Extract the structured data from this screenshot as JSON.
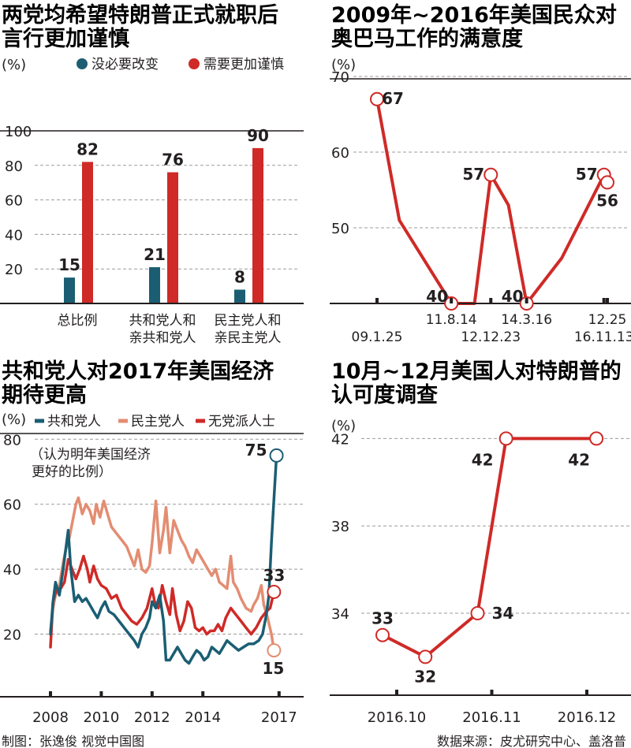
{
  "colors": {
    "teal": "#1b5e73",
    "red": "#cf2a27",
    "salmon": "#e38d72",
    "grid": "#9b9b9b",
    "text": "#231f20"
  },
  "chart_data": [
    {
      "id": "c1",
      "type": "bar",
      "title": [
        "两党均希望特朗普正式就职后",
        "言行更加谨慎"
      ],
      "unit": "(%)",
      "legend": "top",
      "ylim": [
        0,
        100
      ],
      "yticks": [
        20,
        40,
        60,
        80,
        100
      ],
      "grid": true,
      "categories": [
        [
          "总比例"
        ],
        [
          "共和党人和",
          "亲共和党人"
        ],
        [
          "民主党人和",
          "亲民主党人"
        ]
      ],
      "series": [
        {
          "name": "没必要改变",
          "color": "#1b5e73",
          "values": [
            15,
            21,
            8
          ]
        },
        {
          "name": "需要更加谨慎",
          "color": "#cf2a27",
          "values": [
            82,
            76,
            90
          ]
        }
      ]
    },
    {
      "id": "c2",
      "type": "line",
      "title": [
        "2009年~2016年美国民众对",
        "奥巴马工作的满意度"
      ],
      "unit": "(%)",
      "ylim": [
        40,
        70
      ],
      "yticks": [
        50,
        60,
        70
      ],
      "grid": true,
      "x_date_labels": [
        {
          "text": "09.1.25",
          "date": "2009-01-25",
          "row": 2
        },
        {
          "text": "11.8.14",
          "date": "2011-08-14",
          "row": 1
        },
        {
          "text": "12.12.23",
          "date": "2012-12-23",
          "row": 2
        },
        {
          "text": "14.3.16",
          "date": "2014-03-16",
          "row": 1
        },
        {
          "text": "16.11.13",
          "date": "2016-11-13",
          "row": 2
        },
        {
          "text": "12.25",
          "date": "2016-12-25",
          "row": 1
        }
      ],
      "series": [
        {
          "color": "#cf2a27",
          "points": [
            [
              "2009-01-25",
              67
            ],
            [
              "2009-11-01",
              51
            ],
            [
              "2011-08-14",
              40
            ],
            [
              "2012-06-01",
              40
            ],
            [
              "2012-12-23",
              57
            ],
            [
              "2013-08-01",
              53
            ],
            [
              "2014-03-16",
              40
            ],
            [
              "2015-06-01",
              46
            ],
            [
              "2016-11-13",
              57
            ],
            [
              "2016-12-25",
              56
            ]
          ],
          "labeled": [
            {
              "date": "2009-01-25",
              "value": 67,
              "label": "67"
            },
            {
              "date": "2011-08-14",
              "value": 40,
              "label": "40"
            },
            {
              "date": "2012-12-23",
              "value": 57,
              "label": "57"
            },
            {
              "date": "2014-03-16",
              "value": 40,
              "label": "40"
            },
            {
              "date": "2016-11-13",
              "value": 57,
              "label": "57"
            },
            {
              "date": "2016-12-25",
              "value": 56,
              "label": "56"
            }
          ]
        }
      ]
    },
    {
      "id": "c3",
      "type": "line",
      "title": [
        "共和党人对2017年美国经济",
        "期待更高"
      ],
      "unit": "(%)",
      "legend": "top",
      "annotation": [
        "（认为明年美国经济",
        "更好的比例）"
      ],
      "ylim": [
        10,
        80
      ],
      "yticks": [
        20,
        40,
        60,
        80
      ],
      "xticks": [
        2008,
        2010,
        2012,
        2014,
        2017
      ],
      "grid": true,
      "series": [
        {
          "name": "共和党人",
          "color": "#1b5e73",
          "end_label": "75",
          "points": [
            [
              2008.0,
              20
            ],
            [
              2008.1,
              30
            ],
            [
              2008.2,
              36
            ],
            [
              2008.35,
              32
            ],
            [
              2008.5,
              40
            ],
            [
              2008.6,
              46
            ],
            [
              2008.7,
              52
            ],
            [
              2008.8,
              40
            ],
            [
              2008.95,
              30
            ],
            [
              2009.1,
              32
            ],
            [
              2009.25,
              30
            ],
            [
              2009.4,
              31
            ],
            [
              2009.55,
              29
            ],
            [
              2009.7,
              27
            ],
            [
              2009.85,
              25
            ],
            [
              2010.0,
              28
            ],
            [
              2010.15,
              30
            ],
            [
              2010.3,
              27
            ],
            [
              2010.5,
              26
            ],
            [
              2010.7,
              24
            ],
            [
              2010.9,
              22
            ],
            [
              2011.1,
              20
            ],
            [
              2011.3,
              18
            ],
            [
              2011.45,
              16
            ],
            [
              2011.6,
              20
            ],
            [
              2011.75,
              22
            ],
            [
              2011.9,
              25
            ],
            [
              2012.0,
              30
            ],
            [
              2012.15,
              28
            ],
            [
              2012.3,
              32
            ],
            [
              2012.45,
              24
            ],
            [
              2012.55,
              12
            ],
            [
              2012.7,
              12
            ],
            [
              2012.85,
              14
            ],
            [
              2013.0,
              16
            ],
            [
              2013.15,
              14
            ],
            [
              2013.3,
              12
            ],
            [
              2013.45,
              11
            ],
            [
              2013.6,
              13
            ],
            [
              2013.75,
              15
            ],
            [
              2013.9,
              14
            ],
            [
              2014.05,
              12
            ],
            [
              2014.2,
              13
            ],
            [
              2014.35,
              16
            ],
            [
              2014.5,
              15
            ],
            [
              2014.65,
              14
            ],
            [
              2014.8,
              16
            ],
            [
              2014.95,
              18
            ],
            [
              2015.1,
              17
            ],
            [
              2015.25,
              16
            ],
            [
              2015.4,
              15
            ],
            [
              2015.6,
              16
            ],
            [
              2015.8,
              17
            ],
            [
              2016.0,
              17
            ],
            [
              2016.2,
              18
            ],
            [
              2016.35,
              20
            ],
            [
              2016.5,
              26
            ],
            [
              2016.6,
              32
            ],
            [
              2016.7,
              48
            ],
            [
              2016.8,
              62
            ],
            [
              2016.9,
              75
            ]
          ]
        },
        {
          "name": "民主党人",
          "color": "#e38d72",
          "end_label": "15",
          "points": [
            [
              2008.0,
              21
            ],
            [
              2008.1,
              28
            ],
            [
              2008.2,
              32
            ],
            [
              2008.35,
              35
            ],
            [
              2008.5,
              42
            ],
            [
              2008.6,
              46
            ],
            [
              2008.75,
              50
            ],
            [
              2008.9,
              56
            ],
            [
              2009.0,
              60
            ],
            [
              2009.1,
              62
            ],
            [
              2009.25,
              57
            ],
            [
              2009.4,
              60
            ],
            [
              2009.55,
              58
            ],
            [
              2009.7,
              54
            ],
            [
              2009.8,
              60
            ],
            [
              2009.95,
              56
            ],
            [
              2010.1,
              61
            ],
            [
              2010.25,
              57
            ],
            [
              2010.4,
              53
            ],
            [
              2010.6,
              51
            ],
            [
              2010.8,
              49
            ],
            [
              2011.0,
              47
            ],
            [
              2011.15,
              44
            ],
            [
              2011.3,
              41
            ],
            [
              2011.45,
              46
            ],
            [
              2011.6,
              40
            ],
            [
              2011.75,
              39
            ],
            [
              2011.9,
              41
            ],
            [
              2012.0,
              48
            ],
            [
              2012.15,
              61
            ],
            [
              2012.3,
              45
            ],
            [
              2012.45,
              52
            ],
            [
              2012.55,
              59
            ],
            [
              2012.7,
              45
            ],
            [
              2012.85,
              55
            ],
            [
              2013.0,
              52
            ],
            [
              2013.15,
              49
            ],
            [
              2013.3,
              47
            ],
            [
              2013.45,
              44
            ],
            [
              2013.6,
              42
            ],
            [
              2013.75,
              46
            ],
            [
              2013.9,
              44
            ],
            [
              2014.05,
              42
            ],
            [
              2014.2,
              40
            ],
            [
              2014.35,
              38
            ],
            [
              2014.5,
              40
            ],
            [
              2014.65,
              36
            ],
            [
              2014.8,
              35
            ],
            [
              2014.95,
              34
            ],
            [
              2015.1,
              44
            ],
            [
              2015.2,
              36
            ],
            [
              2015.35,
              34
            ],
            [
              2015.5,
              31
            ],
            [
              2015.7,
              28
            ],
            [
              2015.9,
              27
            ],
            [
              2016.0,
              29
            ],
            [
              2016.15,
              31
            ],
            [
              2016.3,
              35
            ],
            [
              2016.4,
              29
            ],
            [
              2016.55,
              25
            ],
            [
              2016.7,
              20
            ],
            [
              2016.8,
              15
            ]
          ]
        },
        {
          "name": "无党派人士",
          "color": "#cf2a27",
          "end_label": "33",
          "points": [
            [
              2008.0,
              16
            ],
            [
              2008.1,
              30
            ],
            [
              2008.25,
              34
            ],
            [
              2008.4,
              34
            ],
            [
              2008.55,
              36
            ],
            [
              2008.7,
              43
            ],
            [
              2008.85,
              40
            ],
            [
              2009.0,
              37
            ],
            [
              2009.15,
              40
            ],
            [
              2009.3,
              44
            ],
            [
              2009.45,
              40
            ],
            [
              2009.55,
              36
            ],
            [
              2009.7,
              41
            ],
            [
              2009.85,
              37
            ],
            [
              2010.0,
              35
            ],
            [
              2010.2,
              34
            ],
            [
              2010.4,
              31
            ],
            [
              2010.6,
              32
            ],
            [
              2010.8,
              28
            ],
            [
              2011.0,
              26
            ],
            [
              2011.2,
              24
            ],
            [
              2011.4,
              23
            ],
            [
              2011.6,
              25
            ],
            [
              2011.8,
              28
            ],
            [
              2012.0,
              34
            ],
            [
              2012.1,
              30
            ],
            [
              2012.25,
              28
            ],
            [
              2012.4,
              35
            ],
            [
              2012.55,
              30
            ],
            [
              2012.7,
              26
            ],
            [
              2012.8,
              34
            ],
            [
              2012.95,
              26
            ],
            [
              2013.1,
              21
            ],
            [
              2013.25,
              24
            ],
            [
              2013.4,
              30
            ],
            [
              2013.55,
              28
            ],
            [
              2013.7,
              22
            ],
            [
              2013.85,
              21
            ],
            [
              2014.0,
              22
            ],
            [
              2014.15,
              20
            ],
            [
              2014.3,
              21
            ],
            [
              2014.45,
              21
            ],
            [
              2014.6,
              23
            ],
            [
              2014.75,
              21
            ],
            [
              2014.9,
              25
            ],
            [
              2015.1,
              28
            ],
            [
              2015.3,
              26
            ],
            [
              2015.5,
              24
            ],
            [
              2015.7,
              22
            ],
            [
              2015.9,
              20
            ],
            [
              2016.1,
              22
            ],
            [
              2016.3,
              25
            ],
            [
              2016.5,
              27
            ],
            [
              2016.65,
              28
            ],
            [
              2016.8,
              33
            ]
          ]
        }
      ]
    },
    {
      "id": "c4",
      "type": "line",
      "title": [
        "10月~12月美国人对特朗普的",
        "认可度调查"
      ],
      "unit": "(%)",
      "ylim": [
        30,
        42
      ],
      "yticks": [
        34,
        38,
        42
      ],
      "xticks": [
        "2016.10",
        "2016.11",
        "2016.12"
      ],
      "grid": true,
      "series": [
        {
          "color": "#cf2a27",
          "points": [
            {
              "month": 10.0,
              "value": 33,
              "label": "33"
            },
            {
              "month": 10.45,
              "value": 32,
              "label": "32"
            },
            {
              "month": 11.0,
              "value": 34,
              "label": "34"
            },
            {
              "month": 11.3,
              "value": 42,
              "label": "42"
            },
            {
              "month": 12.25,
              "value": 42,
              "label": "42"
            }
          ]
        }
      ]
    }
  ],
  "footer": {
    "left": "制图：张逸俊  视觉中国图",
    "right": "数据来源：皮尤研究中心、盖洛普"
  }
}
